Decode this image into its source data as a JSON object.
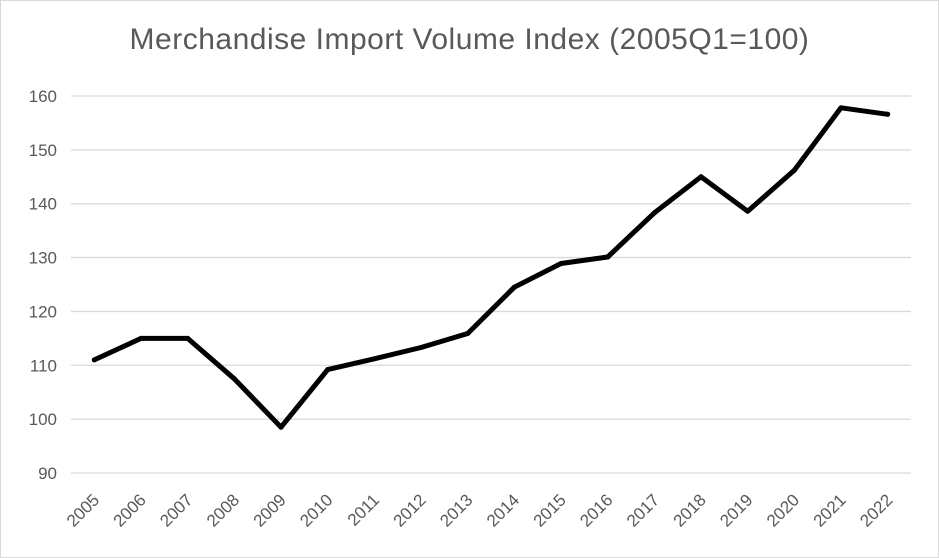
{
  "chart_data": {
    "type": "line",
    "title": "Merchandise Import Volume Index (2005Q1=100)",
    "xlabel": "",
    "ylabel": "",
    "categories": [
      "2005",
      "2006",
      "2007",
      "2008",
      "2009",
      "2010",
      "2011",
      "2012",
      "2013",
      "2014",
      "2015",
      "2016",
      "2017",
      "2018",
      "2019",
      "2020",
      "2021",
      "2022"
    ],
    "series": [
      {
        "values": [
          111,
          115,
          115,
          107.5,
          98.5,
          109.2,
          111.2,
          113.3,
          115.9,
          124.5,
          128.9,
          130.1,
          138.3,
          145,
          138.6,
          146.2,
          157.8,
          156.6
        ],
        "color": "#000000"
      }
    ],
    "yticks": [
      90,
      100,
      110,
      120,
      130,
      140,
      150,
      160
    ],
    "ylim": [
      90,
      160
    ],
    "grid": true,
    "legend": "none",
    "colors": {
      "gridline": "#d9d9d9",
      "tick_text": "#595959",
      "line": "#000000"
    }
  }
}
